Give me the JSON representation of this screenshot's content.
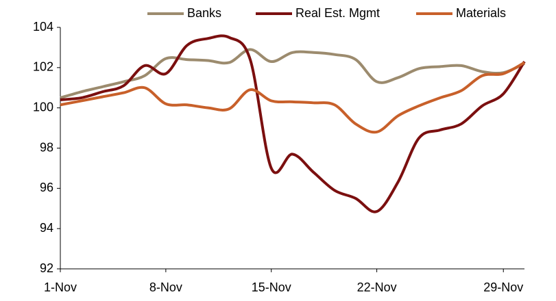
{
  "chart_data": {
    "type": "line",
    "categories": [
      "1-Nov",
      null,
      null,
      null,
      null,
      "8-Nov",
      null,
      null,
      null,
      null,
      "15-Nov",
      null,
      null,
      null,
      null,
      "22-Nov",
      null,
      null,
      null,
      null,
      null,
      "29-Nov",
      null
    ],
    "series": [
      {
        "name": "Banks",
        "color": "#9c8b6e",
        "values": [
          100.5,
          100.8,
          101.05,
          101.3,
          101.6,
          102.45,
          102.4,
          102.35,
          102.25,
          102.9,
          102.3,
          102.75,
          102.75,
          102.65,
          102.4,
          101.3,
          101.5,
          101.95,
          102.05,
          102.1,
          101.8,
          101.75,
          102.2
        ]
      },
      {
        "name": "Real Est. Mgmt",
        "color": "#7b0f0f",
        "values": [
          100.4,
          100.5,
          100.8,
          101.1,
          102.1,
          101.7,
          103.1,
          103.45,
          103.5,
          102.4,
          97.0,
          97.7,
          96.8,
          95.9,
          95.5,
          94.85,
          96.3,
          98.5,
          98.9,
          99.2,
          100.1,
          100.7,
          102.3
        ]
      },
      {
        "name": "Materials",
        "color": "#c8602a",
        "values": [
          100.15,
          100.35,
          100.55,
          100.75,
          101.0,
          100.2,
          100.15,
          100.0,
          99.95,
          100.9,
          100.35,
          100.3,
          100.25,
          100.15,
          99.2,
          98.8,
          99.6,
          100.1,
          100.5,
          100.85,
          101.6,
          101.7,
          102.25
        ]
      }
    ],
    "ylim": [
      92,
      104
    ],
    "yticks": [
      92,
      94,
      96,
      98,
      100,
      102,
      104
    ],
    "legend": "top"
  }
}
